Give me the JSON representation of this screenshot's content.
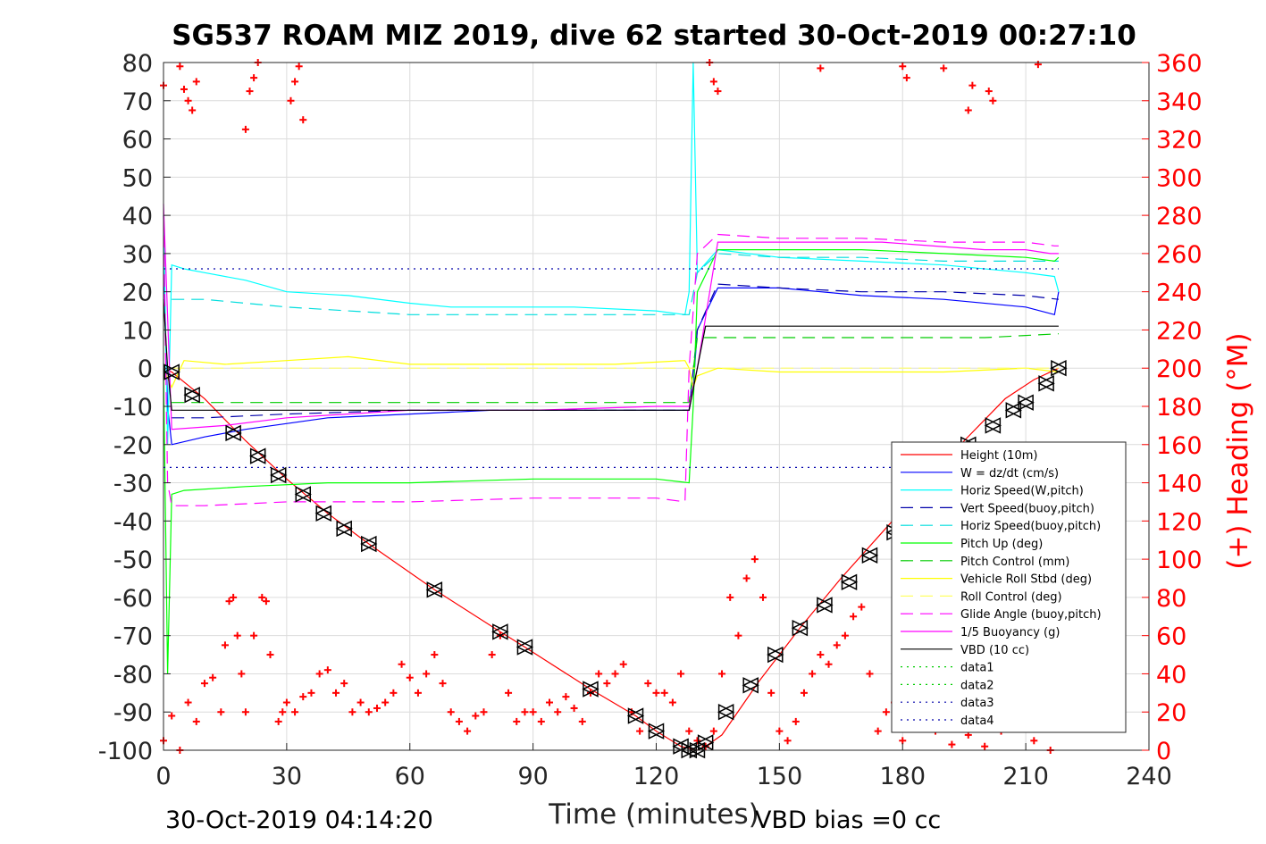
{
  "chart_data": {
    "type": "line",
    "title": "SG537 ROAM MIZ 2019, dive 62 started 30-Oct-2019 00:27:10",
    "xlabel": "Time (minutes)",
    "ylabel": "",
    "ylabel_right": "(+) Heading (°M)",
    "xlim": [
      0,
      240
    ],
    "ylim": [
      -100,
      80
    ],
    "ylim_right": [
      0,
      360
    ],
    "xticks": [
      "0",
      "30",
      "60",
      "90",
      "120",
      "150",
      "180",
      "210",
      "240"
    ],
    "yticks": [
      "-100",
      "-90",
      "-80",
      "-70",
      "-60",
      "-50",
      "-40",
      "-30",
      "-20",
      "-10",
      "0",
      "10",
      "20",
      "30",
      "40",
      "50",
      "60",
      "70",
      "80"
    ],
    "yticks_right": [
      "0",
      "20",
      "40",
      "60",
      "80",
      "100",
      "120",
      "140",
      "160",
      "180",
      "200",
      "220",
      "240",
      "260",
      "280",
      "300",
      "320",
      "340",
      "360"
    ],
    "grid": true,
    "legend_position": "bottom-right",
    "footer_left": "30-Oct-2019 04:14:20",
    "footer_right": "VBD bias =0 cc",
    "colors": {
      "red": "#ff0000",
      "blue": "#0000ff",
      "cyan": "#00ffff",
      "green": "#00ff00",
      "yellow": "#ffff00",
      "magenta": "#ff00ff",
      "black": "#000000",
      "navy": "#0000aa"
    },
    "series": [
      {
        "name": "Height (10m)",
        "color": "#ff0000",
        "style": "solid",
        "x": [
          0,
          2,
          10,
          20,
          30,
          40,
          50,
          66,
          82,
          88,
          104,
          115,
          120,
          126,
          128,
          130,
          132,
          136,
          145,
          155,
          165,
          175,
          185,
          195,
          205,
          212,
          218
        ],
        "y": [
          0,
          -1,
          -8,
          -19,
          -29,
          -38,
          -46,
          -58,
          -69,
          -73,
          -84,
          -91,
          -95,
          -99,
          -99.5,
          -100,
          -99,
          -96,
          -82,
          -68,
          -55,
          -43,
          -31,
          -19,
          -8,
          -3,
          0
        ]
      },
      {
        "name": "W = dz/dt (cm/s)",
        "color": "#0000ff",
        "style": "solid",
        "x": [
          0,
          1,
          2,
          10,
          20,
          40,
          60,
          80,
          100,
          120,
          128,
          129,
          130,
          135,
          150,
          170,
          190,
          210,
          217,
          218
        ],
        "y": [
          30,
          -10,
          -20,
          -18,
          -16,
          -13,
          -12,
          -11,
          -11,
          -11,
          -11,
          -5,
          10,
          21,
          21,
          19,
          18,
          16,
          14,
          20
        ]
      },
      {
        "name": "Horiz Speed(W,pitch)",
        "color": "#00ffff",
        "style": "solid",
        "x": [
          0,
          1,
          2,
          5,
          10,
          20,
          30,
          45,
          60,
          70,
          80,
          100,
          120,
          127,
          128,
          129,
          130,
          135,
          150,
          170,
          190,
          210,
          217,
          218
        ],
        "y": [
          40,
          -20,
          27,
          26,
          25,
          23,
          20,
          19,
          17,
          16,
          16,
          16,
          15,
          14,
          20,
          80,
          25,
          31,
          29,
          28,
          27,
          25,
          24,
          20
        ]
      },
      {
        "name": "Vert Speed(buoy,pitch)",
        "color": "#0000aa",
        "style": "dashed",
        "x": [
          2,
          10,
          30,
          60,
          90,
          120,
          128,
          130,
          135,
          150,
          170,
          190,
          210,
          218
        ],
        "y": [
          -13,
          -13,
          -12,
          -11,
          -11,
          -11,
          -11,
          10,
          22,
          21,
          20,
          20,
          19,
          18
        ]
      },
      {
        "name": "Horiz Speed(buoy,pitch)",
        "color": "#00dddd",
        "style": "dashed",
        "x": [
          2,
          10,
          30,
          60,
          90,
          120,
          128,
          130,
          135,
          150,
          170,
          190,
          210,
          218
        ],
        "y": [
          18,
          18,
          16,
          14,
          14,
          14,
          14,
          25,
          30,
          29,
          29,
          28,
          28,
          28
        ]
      },
      {
        "name": "Pitch Up (deg)",
        "color": "#00ff00",
        "style": "solid",
        "x": [
          0,
          1,
          2,
          5,
          20,
          40,
          60,
          90,
          120,
          128,
          129,
          130,
          135,
          150,
          170,
          190,
          210,
          217,
          218
        ],
        "y": [
          0,
          -80,
          -33,
          -32,
          -31,
          -30,
          -30,
          -29,
          -29,
          -30,
          -10,
          20,
          31,
          31,
          31,
          30,
          29,
          28,
          29
        ]
      },
      {
        "name": "Pitch Control (mm)",
        "color": "#00cc00",
        "style": "dashed",
        "x": [
          2,
          60,
          120,
          128,
          130,
          200,
          218
        ],
        "y": [
          -9,
          -9,
          -9,
          -9,
          8,
          8,
          9
        ]
      },
      {
        "name": "Vehicle Roll Stbd (deg)",
        "color": "#ffff00",
        "style": "solid",
        "x": [
          0,
          2,
          5,
          15,
          30,
          45,
          60,
          90,
          110,
          127,
          128,
          129,
          130,
          135,
          150,
          170,
          190,
          210,
          218
        ],
        "y": [
          0,
          -5,
          2,
          1,
          2,
          3,
          1,
          1,
          1,
          2,
          0,
          -5,
          -2,
          0,
          -1,
          -1,
          -1,
          0,
          -1
        ]
      },
      {
        "name": "Roll Control (deg)",
        "color": "#ffff66",
        "style": "dashed",
        "x": [
          2,
          60,
          120,
          128,
          130,
          200,
          218
        ],
        "y": [
          0,
          0,
          0,
          0,
          0,
          0,
          0
        ]
      },
      {
        "name": "Glide Angle (buoy,pitch)",
        "color": "#ff00ff",
        "style": "dashed",
        "x": [
          0,
          1,
          2,
          10,
          30,
          60,
          90,
          120,
          127,
          128,
          130,
          135,
          150,
          170,
          190,
          210,
          217,
          218
        ],
        "y": [
          40,
          -30,
          -36,
          -36,
          -35,
          -35,
          -34,
          -34,
          -35,
          0,
          30,
          35,
          34,
          34,
          33,
          33,
          32,
          32
        ]
      },
      {
        "name": "1/5 Buoyancy (g)",
        "color": "#ff00ff",
        "style": "solid",
        "x": [
          0,
          2,
          15,
          30,
          60,
          90,
          120,
          128,
          130,
          135,
          150,
          175,
          200,
          210,
          216,
          218
        ],
        "y": [
          43,
          -16,
          -15,
          -13,
          -11,
          -11,
          -10,
          -10,
          0,
          33,
          33,
          33,
          31,
          31,
          30,
          30
        ]
      },
      {
        "name": "VBD (10 cc)",
        "color": "#000000",
        "style": "solid",
        "x": [
          0,
          1,
          2,
          128,
          130,
          132,
          218
        ],
        "y": [
          18,
          0,
          -11,
          -11,
          0,
          11,
          11
        ]
      },
      {
        "name": "data1",
        "color": "#00cc00",
        "style": "dotted",
        "x": [],
        "y": []
      },
      {
        "name": "data2",
        "color": "#00cc00",
        "style": "dotted",
        "x": [],
        "y": []
      },
      {
        "name": "data3",
        "color": "#0000aa",
        "style": "dotted",
        "x": [
          0,
          218
        ],
        "y": [
          26,
          26
        ]
      },
      {
        "name": "data4",
        "color": "#0000aa",
        "style": "dotted",
        "x": [
          0,
          218
        ],
        "y": [
          -26,
          -26
        ]
      }
    ],
    "heading_markers": {
      "color": "#ff0000",
      "axis": "right",
      "x": [
        0,
        2,
        4,
        6,
        8,
        10,
        12,
        14,
        15,
        16,
        17,
        18,
        19,
        20,
        22,
        24,
        25,
        26,
        28,
        29,
        30,
        32,
        34,
        36,
        38,
        40,
        42,
        44,
        46,
        48,
        50,
        52,
        54,
        56,
        58,
        60,
        62,
        64,
        66,
        68,
        70,
        72,
        74,
        76,
        78,
        80,
        82,
        84,
        86,
        88,
        90,
        92,
        94,
        96,
        98,
        100,
        102,
        104,
        106,
        108,
        110,
        112,
        114,
        116,
        118,
        120,
        122,
        124,
        126,
        128,
        130,
        132,
        134,
        136,
        138,
        140,
        142,
        144,
        146,
        148,
        150,
        152,
        154,
        156,
        158,
        160,
        162,
        164,
        166,
        168,
        170,
        172,
        174,
        176,
        178,
        180,
        184,
        188,
        192,
        196,
        200,
        204,
        208,
        212,
        216
      ],
      "y": [
        5,
        18,
        0,
        25,
        15,
        35,
        38,
        20,
        55,
        78,
        80,
        60,
        40,
        20,
        60,
        80,
        78,
        50,
        15,
        20,
        25,
        20,
        28,
        30,
        40,
        42,
        30,
        35,
        20,
        25,
        20,
        22,
        25,
        30,
        45,
        38,
        30,
        40,
        50,
        35,
        20,
        15,
        10,
        18,
        20,
        50,
        60,
        30,
        15,
        20,
        20,
        15,
        25,
        20,
        28,
        22,
        15,
        30,
        40,
        35,
        40,
        45,
        20,
        10,
        35,
        30,
        30,
        25,
        40,
        10,
        5,
        2,
        10,
        40,
        80,
        60,
        90,
        100,
        80,
        30,
        10,
        5,
        15,
        30,
        40,
        50,
        45,
        55,
        60,
        70,
        75,
        40,
        10,
        20,
        25,
        5,
        15,
        10,
        3,
        8,
        2,
        10,
        15,
        5,
        0
      ]
    },
    "heading_markers_top": {
      "x": [
        0,
        4,
        5,
        6,
        7,
        8,
        20,
        21,
        22,
        23,
        31,
        32,
        33,
        34,
        133,
        134,
        135,
        160,
        180,
        181,
        190,
        196,
        197,
        201,
        202,
        213
      ],
      "y": [
        348,
        358,
        346,
        340,
        335,
        350,
        325,
        345,
        352,
        360,
        340,
        350,
        358,
        330,
        360,
        350,
        345,
        357,
        358,
        352,
        357,
        335,
        348,
        345,
        340,
        359
      ]
    },
    "depth_markers": {
      "x": [
        2,
        7,
        17,
        23,
        28,
        34,
        39,
        44,
        50,
        66,
        82,
        88,
        104,
        115,
        120,
        126,
        128,
        130,
        132,
        137,
        143,
        149,
        155,
        161,
        167,
        172,
        178,
        184,
        190,
        196,
        202,
        207,
        210,
        215,
        218
      ],
      "y": [
        -1,
        -7,
        -17,
        -23,
        -28,
        -33,
        -38,
        -42,
        -46,
        -58,
        -69,
        -73,
        -84,
        -91,
        -95,
        -99,
        -100,
        -100,
        -98,
        -90,
        -83,
        -75,
        -68,
        -62,
        -56,
        -49,
        -43,
        -37,
        -31,
        -20,
        -15,
        -11,
        -9,
        -4,
        0
      ]
    }
  }
}
